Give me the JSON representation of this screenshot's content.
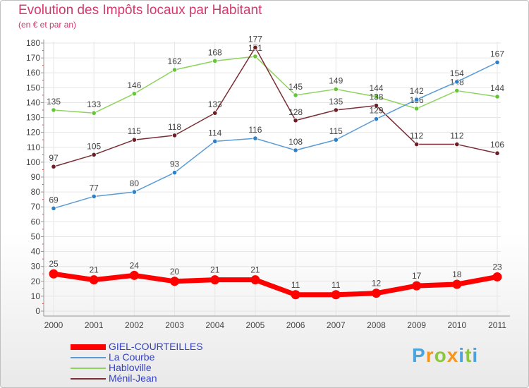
{
  "title": "Evolution des Impôts locaux par Habitant",
  "subtitle": "(en € et par an)",
  "logo": {
    "text": "Proxiti",
    "colors": [
      "#4aa3df",
      "#f7941d",
      "#8dc63f",
      "#f7941d",
      "#4aa3df",
      "#8dc63f",
      "#4aa3df"
    ]
  },
  "chart_data": {
    "type": "line",
    "title": "Evolution des Impôts locaux par Habitant",
    "subtitle": "(en € et par an)",
    "xlabel": "",
    "ylabel": "",
    "ylim": [
      0,
      180
    ],
    "yticks": [
      0,
      10,
      20,
      30,
      40,
      50,
      60,
      70,
      80,
      90,
      100,
      110,
      120,
      130,
      140,
      150,
      160,
      170,
      180
    ],
    "categories": [
      "2000",
      "2001",
      "2002",
      "2003",
      "2004",
      "2005",
      "2006",
      "2007",
      "2008",
      "2009",
      "2010",
      "2011"
    ],
    "grid": true,
    "legend_position": "bottom-left",
    "series": [
      {
        "name": "GIEL-COURTEILLES",
        "color": "#ff0000",
        "values": [
          25,
          21,
          24,
          20,
          21,
          21,
          11,
          11,
          12,
          17,
          18,
          23
        ]
      },
      {
        "name": "La Courbe",
        "color": "#5b9bd5",
        "marker": "#2f7fc6",
        "values": [
          69,
          77,
          80,
          93,
          114,
          116,
          108,
          115,
          129,
          142,
          154,
          167
        ]
      },
      {
        "name": "Habloville",
        "color": "#8fd35f",
        "marker": "#66c43a",
        "values": [
          135,
          133,
          146,
          162,
          168,
          171,
          145,
          149,
          144,
          136,
          148,
          144
        ]
      },
      {
        "name": "Ménil-Jean",
        "color": "#7a2d35",
        "marker": "#6b1e26",
        "values": [
          97,
          105,
          115,
          118,
          133,
          177,
          128,
          135,
          138,
          112,
          112,
          106
        ]
      }
    ]
  }
}
